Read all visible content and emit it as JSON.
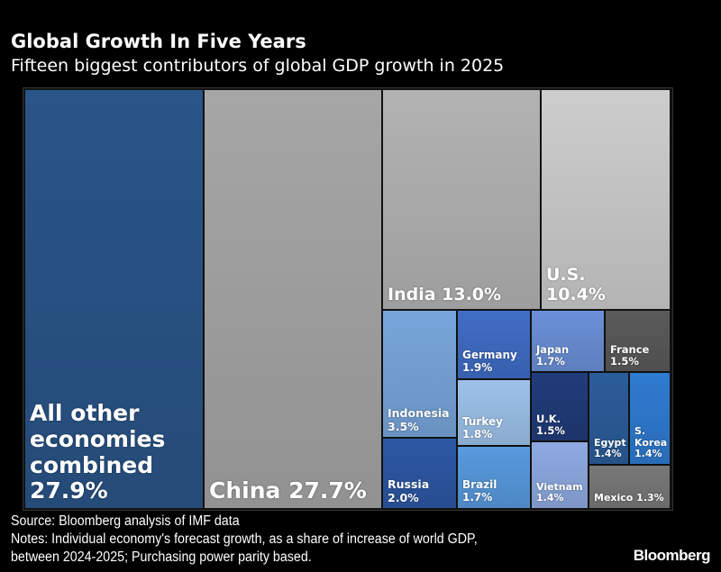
{
  "chart_data": {
    "type": "treemap",
    "title": "Global Growth In Five Years",
    "subtitle": "Fifteen biggest contributors of global GDP growth in 2025",
    "unit": "%",
    "items": [
      {
        "name": "All other economies combined",
        "label": "All other economies combined",
        "value": 27.9,
        "color": "#2a5588"
      },
      {
        "name": "China",
        "label": "China 27.7%",
        "value": 27.7,
        "color": "#a6a6a6"
      },
      {
        "name": "India",
        "label": "India 13.0%",
        "value": 13.0,
        "color": "#b3b3b3"
      },
      {
        "name": "U.S.",
        "label": "U.S.",
        "value": 10.4,
        "color": "#cdcdcd"
      },
      {
        "name": "Indonesia",
        "label": "Indonesia",
        "value": 3.5,
        "color": "#78a6db"
      },
      {
        "name": "Russia",
        "label": "Russia",
        "value": 2.0,
        "color": "#2d58a4"
      },
      {
        "name": "Germany",
        "label": "Germany",
        "value": 1.9,
        "color": "#406dc6"
      },
      {
        "name": "Turkey",
        "label": "Turkey",
        "value": 1.8,
        "color": "#9dc2ea"
      },
      {
        "name": "Brazil",
        "label": "Brazil",
        "value": 1.7,
        "color": "#589ade"
      },
      {
        "name": "Japan",
        "label": "Japan",
        "value": 1.7,
        "color": "#6b90d8"
      },
      {
        "name": "France",
        "label": "France",
        "value": 1.5,
        "color": "#5a5a5a"
      },
      {
        "name": "U.K.",
        "label": "U.K.",
        "value": 1.5,
        "color": "#203c7a"
      },
      {
        "name": "Vietnam",
        "label": "Vietnam",
        "value": 1.4,
        "color": "#8eaae2"
      },
      {
        "name": "Egypt",
        "label": "Egypt",
        "value": 1.4,
        "color": "#2b5d9a"
      },
      {
        "name": "S. Korea",
        "label": "S. Korea",
        "value": 1.4,
        "color": "#2f7bd1"
      },
      {
        "name": "Mexico",
        "label": "Mexico 1.3%",
        "value": 1.3,
        "color": "#787878"
      }
    ]
  },
  "footer": {
    "source": "Source: Bloomberg analysis of IMF data",
    "notes_line1": "Notes: Individual economy's forecast growth, as a share of increase of world GDP,",
    "notes_line2": "between 2024-2025; Purchasing power parity based.",
    "logo": "Bloomberg"
  }
}
